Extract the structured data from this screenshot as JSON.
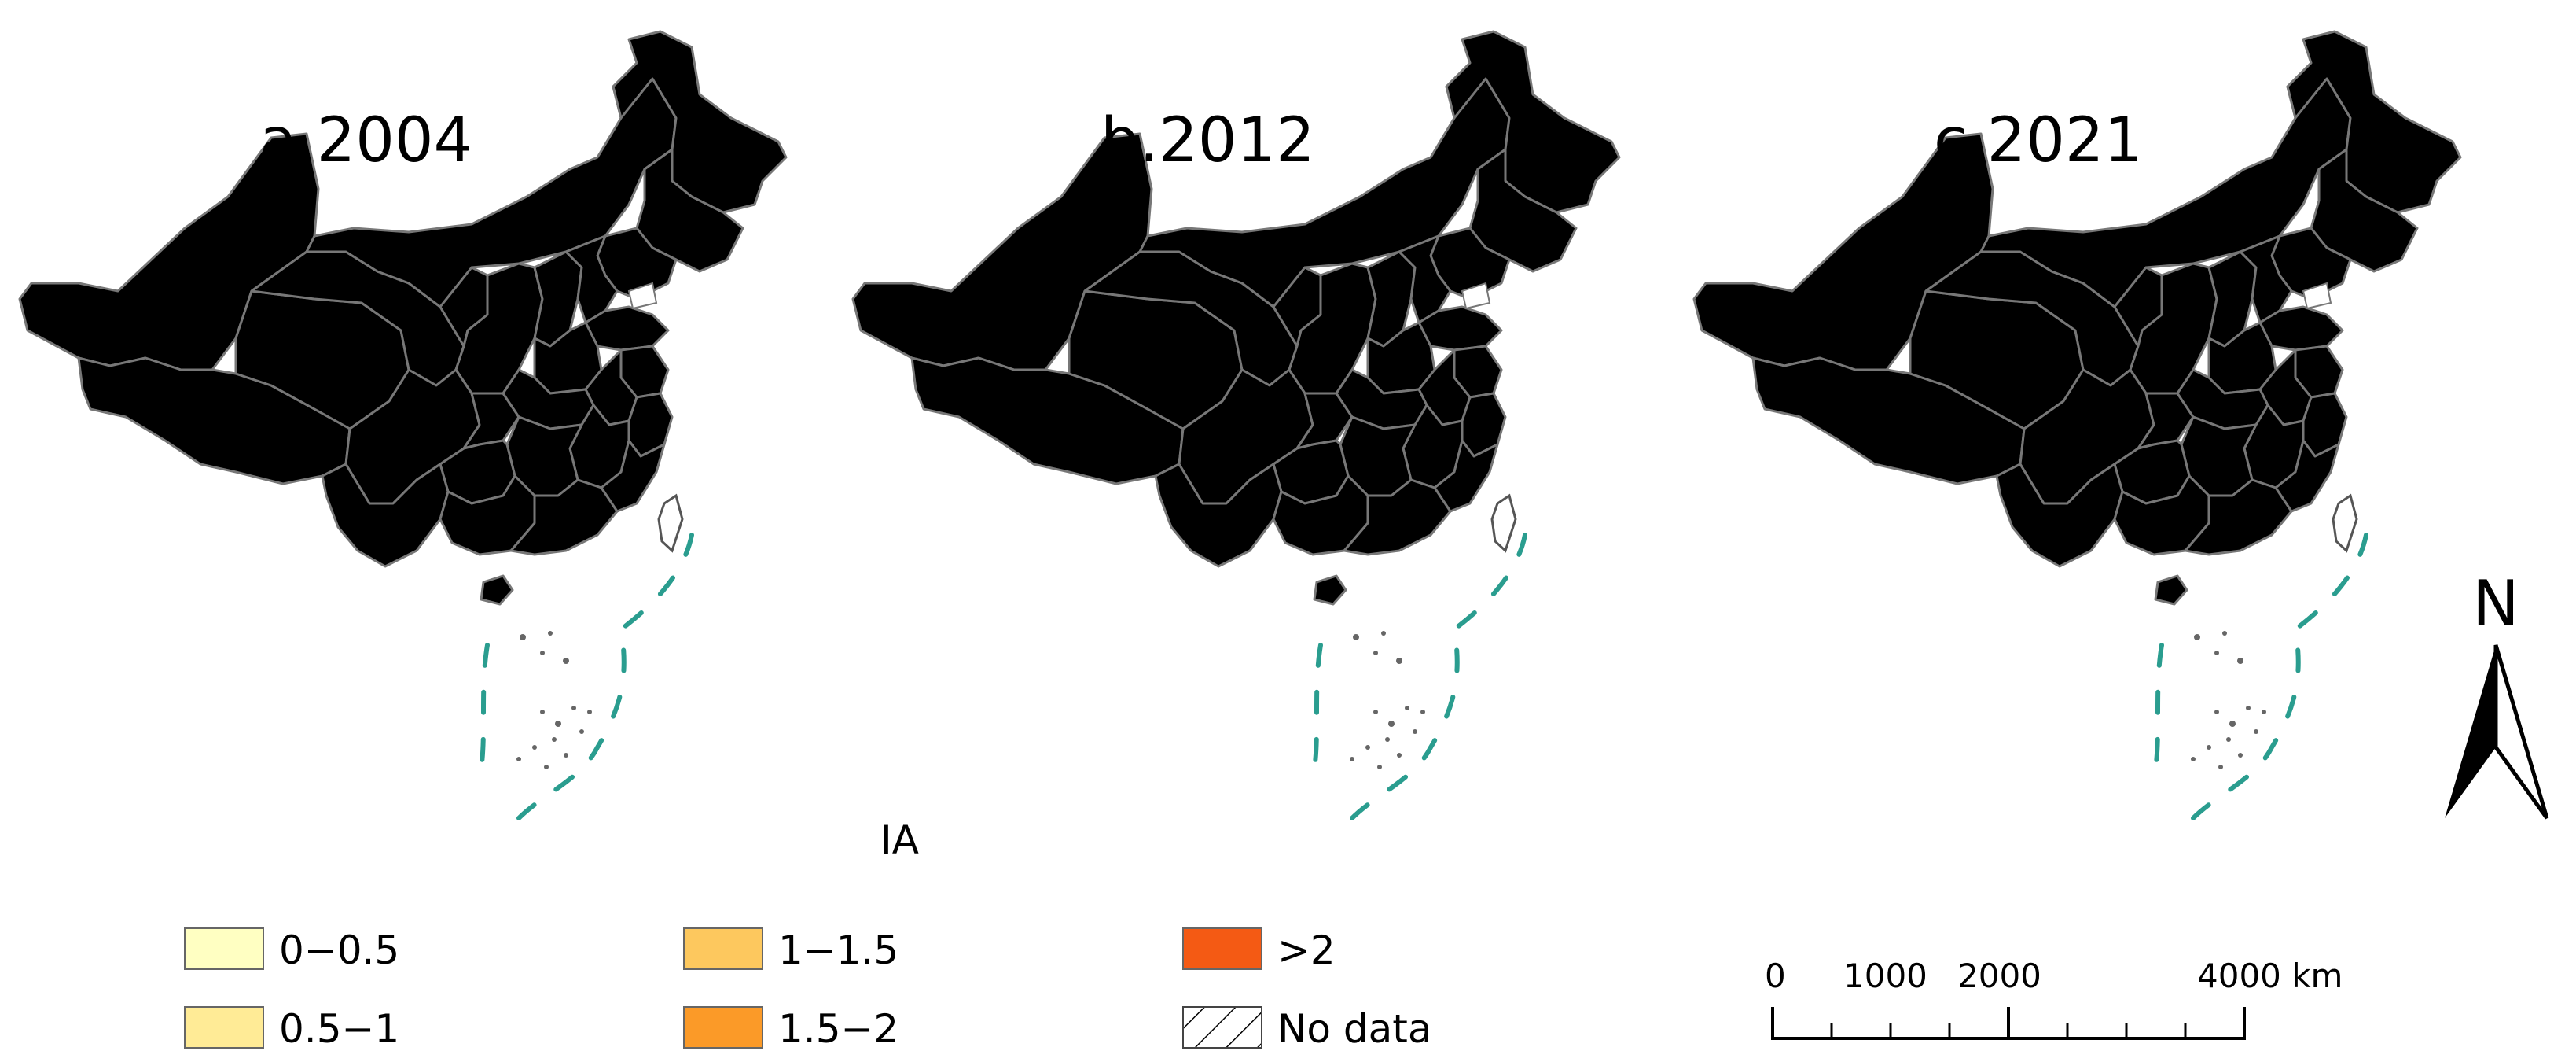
{
  "figure_title": "IA",
  "panels": [
    {
      "label": "a.2004"
    },
    {
      "label": "b.2012"
    },
    {
      "label": "c.2021"
    }
  ],
  "legend": {
    "items": [
      {
        "label": "0−0.5",
        "color": "#ffffc2"
      },
      {
        "label": "0.5−1",
        "color": "#ffeb96"
      },
      {
        "label": "1−1.5",
        "color": "#fdc85e"
      },
      {
        "label": "1.5−2",
        "color": "#fb9a28"
      },
      {
        "label": ">2",
        "color": "#f45a14"
      },
      {
        "label": "No data",
        "color": "hatch"
      }
    ]
  },
  "scale_bar": {
    "ticks": [
      "0",
      "1000",
      "2000",
      "4000 km"
    ]
  },
  "north_arrow": {
    "label": "N"
  },
  "colors": {
    "no_data_hatch": "#000000",
    "dashed_boundary": "#2a9d8f"
  }
}
